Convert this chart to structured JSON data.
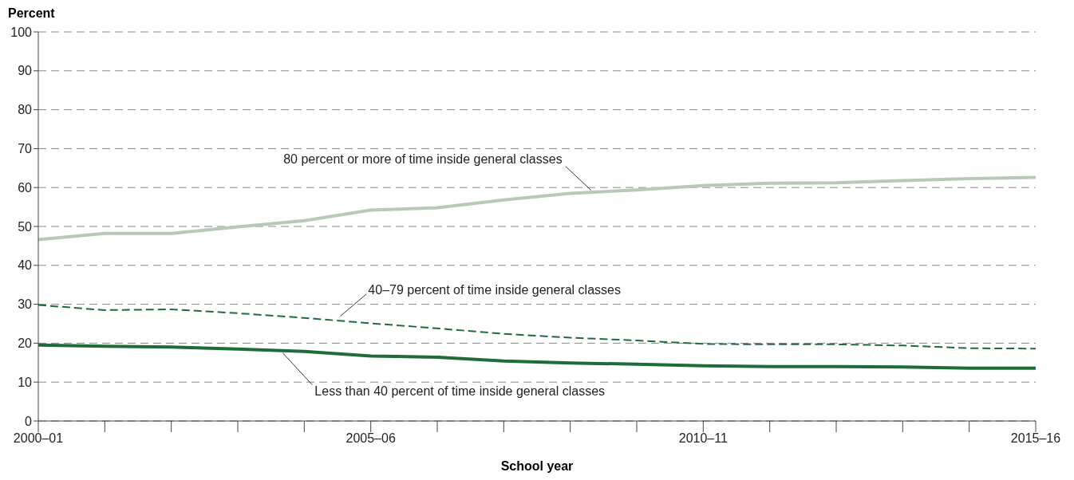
{
  "chart_data": {
    "type": "line",
    "xlabel": "School year",
    "ylabel": "Percent",
    "categories": [
      "2000–01",
      null,
      null,
      null,
      null,
      "2005–06",
      null,
      null,
      null,
      null,
      "2010–11",
      null,
      null,
      null,
      null,
      "2015–16"
    ],
    "series": [
      {
        "name": "80 percent or more of time inside general classes",
        "color": "#b8c9b8",
        "line_style": "solid",
        "values": [
          46.6,
          48.2,
          48.2,
          49.9,
          51.5,
          54.2,
          54.8,
          56.8,
          58.5,
          59.4,
          60.5,
          61.1,
          61.2,
          61.8,
          62.3,
          62.6
        ]
      },
      {
        "name": "40–79 percent of time inside general classes",
        "color": "#1f6b3a",
        "line_style": "dashed",
        "values": [
          29.8,
          28.5,
          28.7,
          27.7,
          26.5,
          25.1,
          23.8,
          22.4,
          21.4,
          20.7,
          19.8,
          19.7,
          19.7,
          19.4,
          18.7,
          18.6
        ]
      },
      {
        "name": "Less than 40 percent of time inside general classes",
        "color": "#1f6b3a",
        "line_style": "solid",
        "values": [
          19.5,
          19.2,
          19.0,
          18.5,
          17.9,
          16.7,
          16.4,
          15.4,
          14.9,
          14.6,
          14.2,
          14.0,
          14.0,
          13.9,
          13.6,
          13.6
        ]
      }
    ],
    "ylim": [
      0,
      100
    ],
    "yticks": [
      0,
      10,
      20,
      30,
      40,
      50,
      60,
      70,
      80,
      90,
      100
    ],
    "grid": "y",
    "legend": false,
    "marker": "none"
  }
}
